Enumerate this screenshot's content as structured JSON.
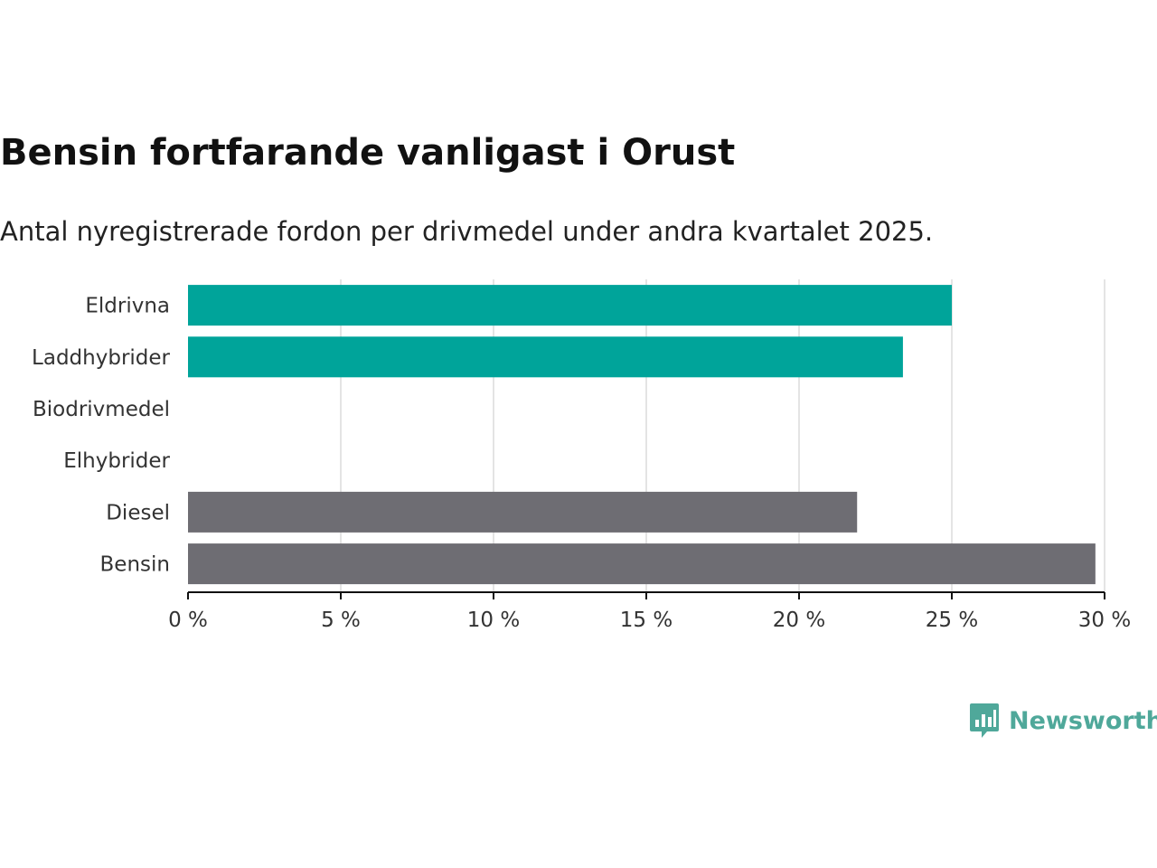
{
  "title": "Bensin fortfarande vanligast i Orust",
  "subtitle": "Antal nyregistrerade fordon per drivmedel under andra kvartalet 2025.",
  "brand": {
    "name": "Newsworthy",
    "color": "#4fa89a",
    "icon": "bar-chart-speech-bubble-icon"
  },
  "chart_data": {
    "type": "bar",
    "orientation": "horizontal",
    "categories": [
      "Eldrivna",
      "Laddhybrider",
      "Biodrivmedel",
      "Elhybrider",
      "Diesel",
      "Bensin"
    ],
    "values": [
      25.0,
      23.4,
      0,
      0,
      21.9,
      29.7
    ],
    "colors": [
      "#00a49a",
      "#00a49a",
      "#00a49a",
      "#00a49a",
      "#6e6d73",
      "#6e6d73"
    ],
    "xlim": [
      0,
      30
    ],
    "xticks": [
      0,
      5,
      10,
      15,
      20,
      25,
      30
    ],
    "xtick_labels": [
      "0 %",
      "5 %",
      "10 %",
      "15 %",
      "20 %",
      "25 %",
      "30 %"
    ],
    "grid": true,
    "xlabel": "",
    "ylabel": ""
  }
}
